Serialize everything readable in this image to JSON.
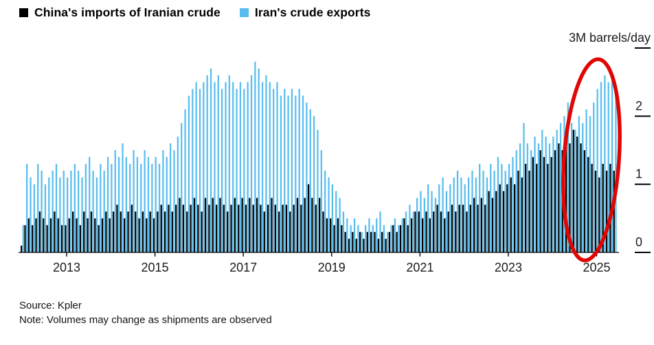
{
  "footer": {
    "source": "Source: Kpler",
    "note": "Note: Volumes may change as shipments are observed"
  },
  "chart_data": {
    "type": "bar",
    "title": "",
    "frequency": "monthly",
    "x_start": "2012-01",
    "x_end": "2025-06",
    "start_year": 2012,
    "x_tick_years": [
      2013,
      2015,
      2017,
      2019,
      2021,
      2023,
      2025
    ],
    "x_tick_labels": [
      "2013",
      "2015",
      "2017",
      "2019",
      "2021",
      "2023",
      "2025"
    ],
    "y_ticks": [
      0,
      1,
      2,
      3
    ],
    "y_tick_labels": [
      "0",
      "1",
      "2",
      "3M barrels/day"
    ],
    "y_axis_label": "3M barrels/day",
    "ylim": [
      0,
      3
    ],
    "grid": false,
    "legend_position": "top-left",
    "annotation": {
      "type": "hand-drawn-ellipse",
      "color": "#e00603",
      "highlights": "late 2024 - 2025 bars"
    },
    "series": [
      {
        "name": "China's imports of Iranian crude",
        "color": "#000000",
        "values": [
          0.1,
          0.4,
          0.5,
          0.4,
          0.5,
          0.6,
          0.5,
          0.4,
          0.5,
          0.6,
          0.5,
          0.4,
          0.4,
          0.5,
          0.6,
          0.5,
          0.4,
          0.6,
          0.5,
          0.6,
          0.5,
          0.4,
          0.5,
          0.6,
          0.5,
          0.6,
          0.7,
          0.6,
          0.5,
          0.6,
          0.7,
          0.6,
          0.5,
          0.6,
          0.5,
          0.6,
          0.5,
          0.6,
          0.7,
          0.6,
          0.7,
          0.6,
          0.7,
          0.8,
          0.7,
          0.6,
          0.7,
          0.8,
          0.7,
          0.6,
          0.8,
          0.7,
          0.8,
          0.7,
          0.8,
          0.7,
          0.6,
          0.7,
          0.8,
          0.7,
          0.8,
          0.7,
          0.8,
          0.7,
          0.8,
          0.7,
          0.6,
          0.7,
          0.8,
          0.7,
          0.6,
          0.7,
          0.7,
          0.6,
          0.7,
          0.8,
          0.7,
          0.8,
          1.0,
          0.8,
          0.7,
          0.8,
          0.6,
          0.5,
          0.5,
          0.4,
          0.5,
          0.4,
          0.3,
          0.2,
          0.3,
          0.2,
          0.3,
          0.2,
          0.3,
          0.3,
          0.3,
          0.2,
          0.3,
          0.2,
          0.3,
          0.4,
          0.3,
          0.4,
          0.5,
          0.4,
          0.5,
          0.6,
          0.6,
          0.5,
          0.6,
          0.5,
          0.6,
          0.7,
          0.6,
          0.5,
          0.6,
          0.7,
          0.6,
          0.7,
          0.7,
          0.6,
          0.7,
          0.8,
          0.7,
          0.8,
          0.7,
          0.9,
          0.8,
          0.9,
          1.0,
          0.9,
          1.0,
          1.1,
          1.0,
          1.2,
          1.1,
          1.3,
          1.2,
          1.4,
          1.3,
          1.5,
          1.4,
          1.3,
          1.4,
          1.5,
          1.6,
          1.5,
          1.7,
          1.6,
          1.8,
          1.7,
          1.6,
          1.5,
          1.4,
          1.3,
          1.2,
          1.1,
          1.3,
          1.2,
          1.3,
          1.2
        ]
      },
      {
        "name": "Iran's crude exports",
        "color": "#58bdee",
        "values": [
          0.4,
          1.3,
          1.1,
          1.0,
          1.3,
          1.2,
          1.0,
          1.1,
          1.2,
          1.3,
          1.1,
          1.2,
          1.1,
          1.2,
          1.3,
          1.2,
          1.1,
          1.3,
          1.4,
          1.2,
          1.1,
          1.3,
          1.2,
          1.4,
          1.3,
          1.5,
          1.4,
          1.6,
          1.4,
          1.3,
          1.5,
          1.4,
          1.3,
          1.5,
          1.4,
          1.3,
          1.4,
          1.3,
          1.5,
          1.4,
          1.6,
          1.5,
          1.7,
          1.9,
          2.1,
          2.3,
          2.4,
          2.5,
          2.4,
          2.5,
          2.6,
          2.7,
          2.5,
          2.6,
          2.4,
          2.5,
          2.6,
          2.5,
          2.4,
          2.5,
          2.4,
          2.5,
          2.6,
          2.8,
          2.7,
          2.5,
          2.6,
          2.5,
          2.4,
          2.5,
          2.3,
          2.4,
          2.3,
          2.4,
          2.3,
          2.4,
          2.3,
          2.2,
          2.1,
          2.0,
          1.8,
          1.5,
          1.2,
          1.1,
          1.0,
          0.9,
          0.8,
          0.6,
          0.5,
          0.4,
          0.5,
          0.4,
          0.3,
          0.4,
          0.5,
          0.4,
          0.5,
          0.6,
          0.4,
          0.3,
          0.4,
          0.5,
          0.4,
          0.5,
          0.6,
          0.7,
          0.6,
          0.8,
          0.9,
          0.8,
          1.0,
          0.9,
          0.8,
          1.0,
          1.1,
          0.9,
          1.0,
          1.1,
          1.2,
          1.1,
          1.0,
          1.1,
          1.2,
          1.1,
          1.3,
          1.2,
          1.1,
          1.3,
          1.2,
          1.4,
          1.3,
          1.2,
          1.3,
          1.4,
          1.5,
          1.6,
          1.9,
          1.6,
          1.5,
          1.7,
          1.6,
          1.8,
          1.7,
          1.6,
          1.7,
          1.8,
          1.9,
          2.0,
          2.2,
          1.9,
          1.8,
          2.0,
          1.9,
          2.1,
          2.0,
          2.2,
          2.4,
          2.5,
          2.6,
          2.5,
          2.6,
          2.4
        ]
      }
    ]
  }
}
